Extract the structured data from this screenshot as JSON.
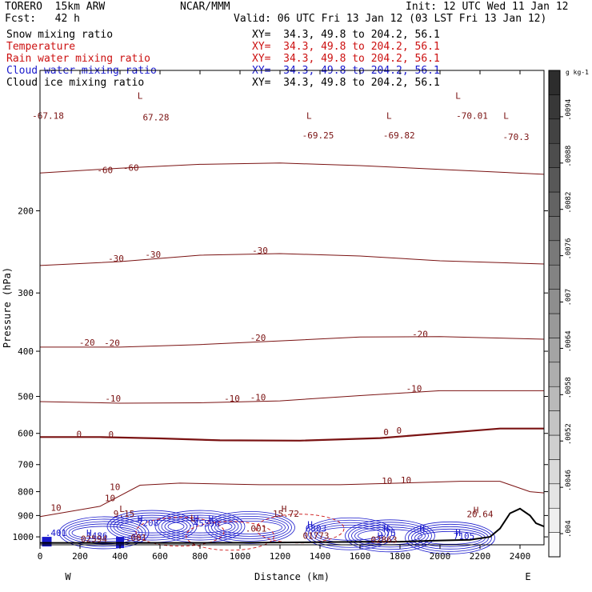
{
  "header": {
    "model": "TORERO  15km ARW",
    "center": "NCAR/MMM",
    "init": "Init: 12 UTC Wed 11 Jan 12",
    "fcst": "Fcst:   42 h",
    "valid": "Valid: 06 UTC Fri 13 Jan 12 (03 LST Fri 13 Jan 12)"
  },
  "fields": [
    {
      "name": "Snow mixing ratio",
      "xy": "XY=  34.3, 49.8 to 204.2, 56.1",
      "color": "#000000",
      "xy_color": "#000000"
    },
    {
      "name": "Temperature",
      "xy": "XY=  34.3, 49.8 to 204.2, 56.1",
      "color": "#cc1111",
      "xy_color": "#cc1111"
    },
    {
      "name": "Rain water mixing ratio",
      "xy": "XY=  34.3, 49.8 to 204.2, 56.1",
      "color": "#cc1111",
      "xy_color": "#cc1111"
    },
    {
      "name": "Cloud water mixing ratio",
      "xy": "XY=  34.3, 49.8 to 204.2, 56.1",
      "color": "#1a1acc",
      "xy_color": "#1a1acc"
    },
    {
      "name": "Cloud ice mixing ratio",
      "xy": "XY=  34.3, 49.8 to 204.2, 56.1",
      "color": "#000000",
      "xy_color": "#000000"
    }
  ],
  "chart_data": {
    "type": "contour",
    "xlabel": "Distance (km)",
    "ylabel": "Pressure (hPa)",
    "xlim": [
      0,
      2520
    ],
    "ylim_pressure": [
      1040,
      100
    ],
    "x_ticks": [
      0,
      200,
      400,
      600,
      800,
      1000,
      1200,
      1400,
      1600,
      1800,
      2000,
      2200,
      2400
    ],
    "y_ticks": [
      200,
      300,
      400,
      500,
      600,
      700,
      800,
      900,
      1000
    ],
    "endpoint_left": "W",
    "endpoint_right": "E",
    "colorbar": {
      "unit": "g kg-1",
      "ticks": [
        ".004",
        ".0046",
        ".0052",
        ".0058",
        ".0064",
        ".007",
        ".0076",
        ".0082",
        ".0088",
        ".0094"
      ],
      "values": [
        0.004,
        0.0046,
        0.0052,
        0.0058,
        0.0064,
        0.007,
        0.0076,
        0.0082,
        0.0088,
        0.0094
      ],
      "range": [
        0.0037,
        0.01
      ]
    },
    "temperature_isotherms": [
      {
        "value": -60,
        "points": [
          [
            0,
            166
          ],
          [
            400,
            162
          ],
          [
            800,
            159
          ],
          [
            1200,
            158
          ],
          [
            1600,
            160
          ],
          [
            2000,
            163
          ],
          [
            2520,
            167
          ]
        ]
      },
      {
        "value": -30,
        "points": [
          [
            0,
            262
          ],
          [
            400,
            257
          ],
          [
            800,
            249
          ],
          [
            1200,
            247
          ],
          [
            1600,
            250
          ],
          [
            2000,
            256
          ],
          [
            2520,
            260
          ]
        ]
      },
      {
        "value": -20,
        "points": [
          [
            0,
            392
          ],
          [
            400,
            392
          ],
          [
            800,
            387
          ],
          [
            1200,
            380
          ],
          [
            1600,
            373
          ],
          [
            2000,
            372
          ],
          [
            2520,
            377
          ]
        ]
      },
      {
        "value": -10,
        "points": [
          [
            0,
            513
          ],
          [
            400,
            517
          ],
          [
            800,
            516
          ],
          [
            1200,
            511
          ],
          [
            1600,
            498
          ],
          [
            2000,
            486
          ],
          [
            2520,
            486
          ]
        ]
      },
      {
        "value": 0,
        "points": [
          [
            0,
            611
          ],
          [
            300,
            611
          ],
          [
            600,
            615
          ],
          [
            900,
            621
          ],
          [
            1300,
            622
          ],
          [
            1700,
            614
          ],
          [
            2000,
            600
          ],
          [
            2300,
            586
          ],
          [
            2520,
            586
          ]
        ]
      },
      {
        "value": 10,
        "points": [
          [
            0,
            905
          ],
          [
            300,
            860
          ],
          [
            500,
            775
          ],
          [
            700,
            767
          ],
          [
            1100,
            773
          ],
          [
            1500,
            773
          ],
          [
            1800,
            767
          ],
          [
            2100,
            760
          ],
          [
            2300,
            760
          ],
          [
            2450,
            800
          ],
          [
            2520,
            805
          ]
        ]
      }
    ],
    "labels": [
      {
        "text": "-67.18",
        "x": 40,
        "p": 127
      },
      {
        "text": "L",
        "x": 500,
        "p": 115
      },
      {
        "text": "67.28",
        "x": 580,
        "p": 128
      },
      {
        "text": "L",
        "x": 1345,
        "p": 127
      },
      {
        "text": "-69.25",
        "x": 1390,
        "p": 140
      },
      {
        "text": "L",
        "x": 1745,
        "p": 127
      },
      {
        "text": "-69.82",
        "x": 1795,
        "p": 140
      },
      {
        "text": "L",
        "x": 2090,
        "p": 115
      },
      {
        "text": "-70.01",
        "x": 2160,
        "p": 127
      },
      {
        "text": "L",
        "x": 2330,
        "p": 127
      },
      {
        "text": "-70.3",
        "x": 2380,
        "p": 141
      },
      {
        "text": "-60",
        "x": 325,
        "p": 166
      },
      {
        "text": "-60",
        "x": 455,
        "p": 164
      },
      {
        "text": "-30",
        "x": 380,
        "p": 257
      },
      {
        "text": "-30",
        "x": 565,
        "p": 252
      },
      {
        "text": "-30",
        "x": 1100,
        "p": 247
      },
      {
        "text": "-20",
        "x": 235,
        "p": 389
      },
      {
        "text": "-20",
        "x": 360,
        "p": 390
      },
      {
        "text": "-20",
        "x": 1090,
        "p": 380
      },
      {
        "text": "-20",
        "x": 1900,
        "p": 373
      },
      {
        "text": "-10",
        "x": 365,
        "p": 513
      },
      {
        "text": "-10",
        "x": 960,
        "p": 513
      },
      {
        "text": "-10",
        "x": 1090,
        "p": 510
      },
      {
        "text": "-10",
        "x": 1870,
        "p": 488
      },
      {
        "text": "0",
        "x": 195,
        "p": 612
      },
      {
        "text": "0",
        "x": 355,
        "p": 613
      },
      {
        "text": "0",
        "x": 1730,
        "p": 605
      },
      {
        "text": "0",
        "x": 1795,
        "p": 601
      },
      {
        "text": "10",
        "x": 1735,
        "p": 770
      },
      {
        "text": "10",
        "x": 1830,
        "p": 767
      },
      {
        "text": "10",
        "x": 375,
        "p": 793
      },
      {
        "text": "10",
        "x": 350,
        "p": 838
      },
      {
        "text": "10",
        "x": 80,
        "p": 880
      },
      {
        "text": "L",
        "x": 410,
        "p": 885
      },
      {
        "text": "9.15",
        "x": 420,
        "p": 905
      },
      {
        "text": "H",
        "x": 1220,
        "p": 885
      },
      {
        "text": "15.72",
        "x": 1230,
        "p": 905
      },
      {
        "text": "H",
        "x": 2180,
        "p": 890
      },
      {
        "text": "20.64",
        "x": 2200,
        "p": 908
      },
      {
        "text": "H",
        "x": 500,
        "p": 930
      },
      {
        "text": "7208",
        "x": 540,
        "p": 948
      },
      {
        "text": "H",
        "x": 780,
        "p": 930
      },
      {
        "text": "H",
        "x": 855,
        "p": 930
      },
      {
        "text": ".45596",
        "x": 820,
        "p": 950
      },
      {
        "text": "L",
        "x": 765,
        "p": 925
      },
      {
        "text": ".001",
        "x": 1080,
        "p": 975
      },
      {
        "text": "H",
        "x": 1350,
        "p": 955
      },
      {
        "text": "6803",
        "x": 1380,
        "p": 974
      },
      {
        "text": "H",
        "x": 1730,
        "p": 975
      },
      {
        "text": ".75",
        "x": 1740,
        "p": 995
      },
      {
        "text": "H",
        "x": 1910,
        "p": 975
      },
      {
        "text": "H",
        "x": 2090,
        "p": 995
      },
      {
        "text": "7105",
        "x": 2120,
        "p": 1012
      },
      {
        "text": "01773",
        "x": 1380,
        "p": 1010
      },
      {
        "text": "H",
        "x": 1700,
        "p": 1010
      },
      {
        "text": "02863",
        "x": 1720,
        "p": 1030
      },
      {
        "text": ".401",
        "x": 80,
        "p": 995
      },
      {
        "text": "H",
        "x": 245,
        "p": 995
      },
      {
        "text": "1486",
        "x": 285,
        "p": 1010
      },
      {
        "text": ".001",
        "x": 480,
        "p": 1020
      },
      {
        "text": "02594",
        "x": 270,
        "p": 1026
      }
    ],
    "terrain": [
      [
        0,
        1030
      ],
      [
        400,
        1030
      ],
      [
        800,
        1030
      ],
      [
        1200,
        1028
      ],
      [
        1600,
        1025
      ],
      [
        1800,
        1024
      ],
      [
        2000,
        1018
      ],
      [
        2150,
        1015
      ],
      [
        2250,
        1000
      ],
      [
        2300,
        960
      ],
      [
        2350,
        890
      ],
      [
        2400,
        870
      ],
      [
        2450,
        900
      ],
      [
        2480,
        935
      ],
      [
        2520,
        950
      ]
    ]
  }
}
